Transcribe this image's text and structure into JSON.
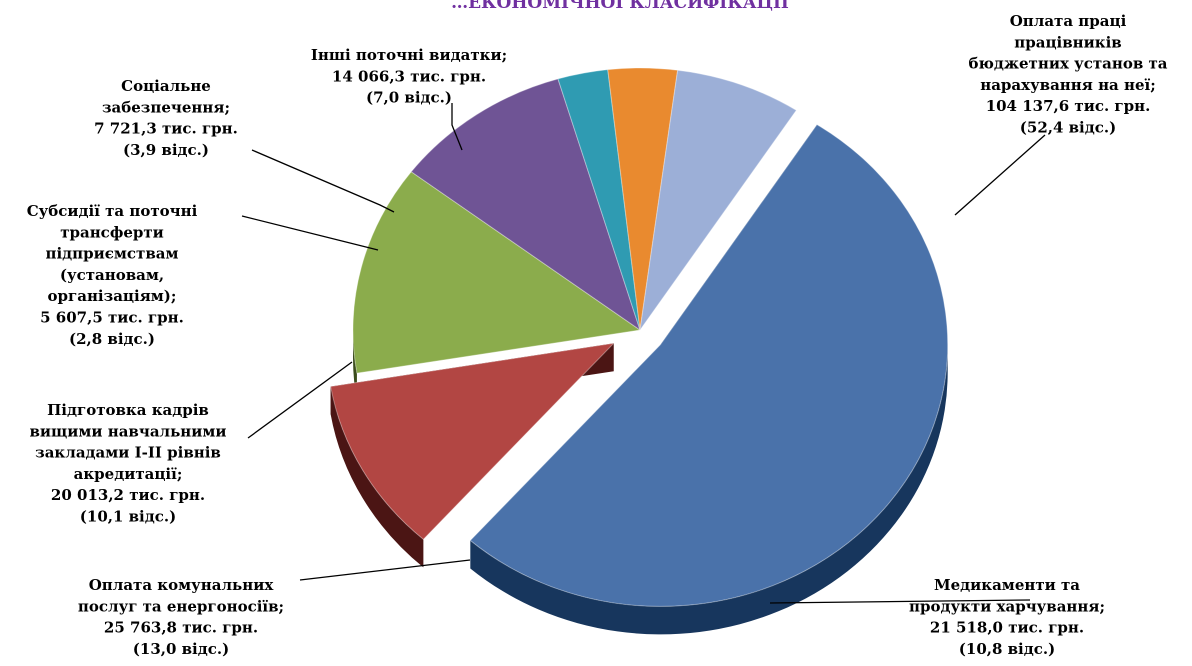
{
  "chart_data": {
    "type": "pie",
    "title": "",
    "title_partial": "…ЕКОНОМІЧНОЇ КЛАСИФІКАЦІЇ",
    "unit": "тис. грн.",
    "slices": [
      {
        "label_lines": [
          "Оплата праці",
          "працівників",
          "бюджетних установ та",
          "нарахування на неї;"
        ],
        "amount": "104 137,6 тис. грн.",
        "share": "(52,4 відс.)",
        "value": 104137.6,
        "percent": 52.4,
        "color": "#4a72aa",
        "side": "#17365d",
        "exploded": true
      },
      {
        "label_lines": [
          "Медикаменти та",
          "продукти харчування;"
        ],
        "amount": "21 518,0 тис. грн.",
        "share": "(10,8 відс.)",
        "value": 21518.0,
        "percent": 10.8,
        "color": "#b24643",
        "side": "#4b1514",
        "exploded": true
      },
      {
        "label_lines": [
          "Оплата комунальних",
          "послуг та енергоносіїв;"
        ],
        "amount": "25 763,8 тис. грн.",
        "share": "(13,0 відс.)",
        "value": 25763.8,
        "percent": 13.0,
        "color": "#8bac4c",
        "side": "#3b4d1c",
        "exploded": false
      },
      {
        "label_lines": [
          "Підготовка кадрів",
          "вищими навчальними",
          "закладами І-ІІ рівнів",
          "акредитації;"
        ],
        "amount": "20 013,2 тис. грн.",
        "share": "(10,1 відс.)",
        "value": 20013.2,
        "percent": 10.1,
        "color": "#6f5495",
        "side": "#2f2143",
        "exploded": false
      },
      {
        "label_lines": [
          "Субсидії та поточні",
          "трансферти",
          "підприємствам",
          "(установам,",
          "організаціям);"
        ],
        "amount": "5 607,5 тис. грн.",
        "share": "(2,8 відс.)",
        "value": 5607.5,
        "percent": 2.8,
        "color": "#2f9bb2",
        "side": "#0d4350",
        "exploded": false
      },
      {
        "label_lines": [
          "Соціальне",
          "забезпечення;"
        ],
        "amount": "7 721,3 тис. грн.",
        "share": "(3,9 відс.)",
        "value": 7721.3,
        "percent": 3.9,
        "color": "#e98a2f",
        "side": "#733c0b",
        "exploded": false
      },
      {
        "label_lines": [
          "Інші поточні видатки;"
        ],
        "amount": "14 066,3 тис. грн.",
        "share": "(7,0 відс.)",
        "value": 14066.3,
        "percent": 7.0,
        "color": "#9cafd7",
        "side": "#4d5c84",
        "exploded": false
      }
    ],
    "legend": "none"
  }
}
